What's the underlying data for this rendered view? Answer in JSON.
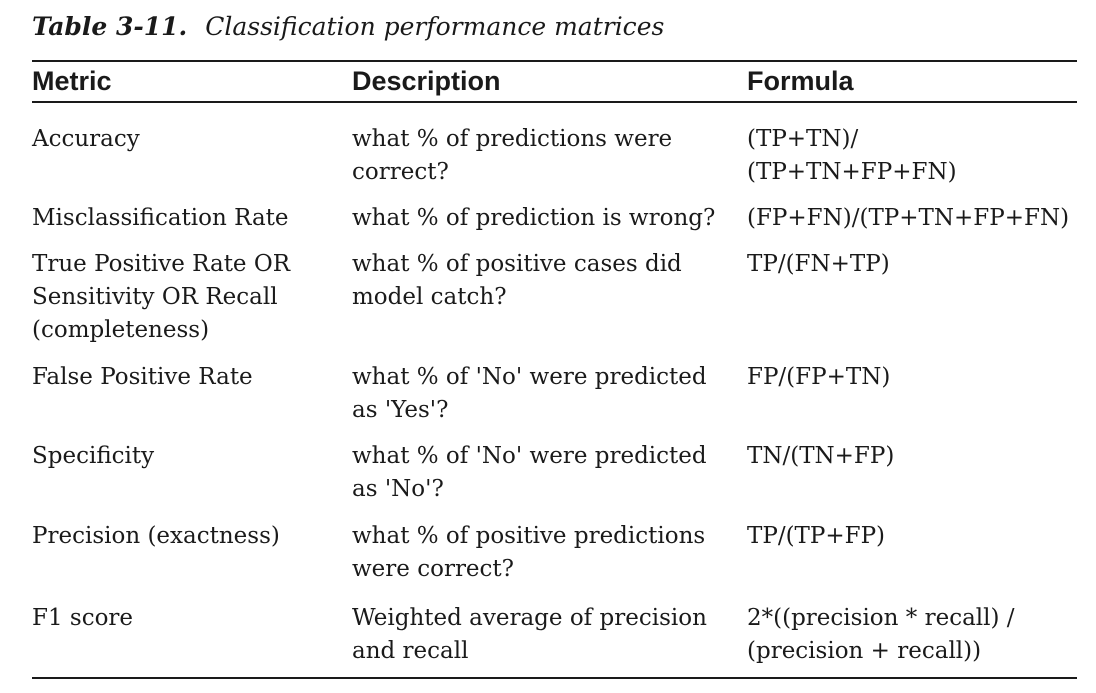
{
  "caption": {
    "label": "Table 3-11.",
    "title": "Classification performance matrices"
  },
  "table": {
    "headers": [
      "Metric",
      "Description",
      "Formula"
    ],
    "rows": [
      {
        "metric": "Accuracy",
        "description": "what % of predictions were\ncorrect?",
        "formula": "(TP+TN)/\n(TP+TN+FP+FN)"
      },
      {
        "metric": "Misclassification Rate",
        "description": "what % of prediction is wrong?",
        "formula": "(FP+FN)/(TP+TN+FP+FN)"
      },
      {
        "metric": "True Positive Rate OR\nSensitivity OR Recall\n(completeness)",
        "description": "what % of positive cases did\nmodel catch?",
        "formula": "TP/(FN+TP)"
      },
      {
        "metric": "False Positive Rate",
        "description": "what % of 'No' were predicted\nas 'Yes'?",
        "formula": "FP/(FP+TN)"
      },
      {
        "metric": "Specificity",
        "description": "what % of 'No' were predicted\nas 'No'?",
        "formula": "TN/(TN+FP)"
      },
      {
        "metric": "Precision (exactness)",
        "description": "what % of positive predictions\nwere correct?",
        "formula": "TP/(TP+FP)"
      },
      {
        "metric": "F1 score",
        "description": "Weighted average of precision\nand recall",
        "formula": "2*((precision * recall) /\n(precision + recall))"
      }
    ]
  }
}
